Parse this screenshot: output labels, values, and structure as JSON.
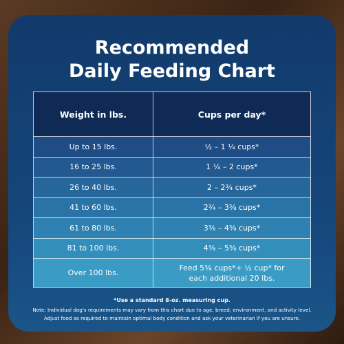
{
  "title": {
    "line1": "Recommended",
    "line2": "Daily Feeding Chart"
  },
  "table": {
    "header": [
      "Weight in lbs.",
      "Cups per day*"
    ],
    "rows": [
      [
        "Up to 15 lbs.",
        "½ – 1 ¼ cups*"
      ],
      [
        "16 to 25 lbs.",
        "1 ¼ –  2 cups*"
      ],
      [
        "26 to 40 lbs.",
        "2 – 2¾ cups*"
      ],
      [
        "41 to 60 lbs.",
        "2¾ – 3⅜ cups*"
      ],
      [
        "61 to 80 lbs.",
        "3⅜ – 4⅜ cups*"
      ],
      [
        "81 to 100 lbs.",
        "4⅜ – 5⅜ cups*"
      ],
      [
        "Over 100 lbs.",
        "Feed 5⅜ cups*+ ½ cup* for each additional 20 lbs."
      ]
    ]
  },
  "footnotes": {
    "measure": "*Use a standard 8-oz. measuring cup.",
    "note1": "Note: Individual dog's requirements may vary from this chart due to age, breed, environment, and activity level.",
    "note2": "Adjust food as required to maintain optimal body condition and ask your veterinarian if you are unsure."
  }
}
